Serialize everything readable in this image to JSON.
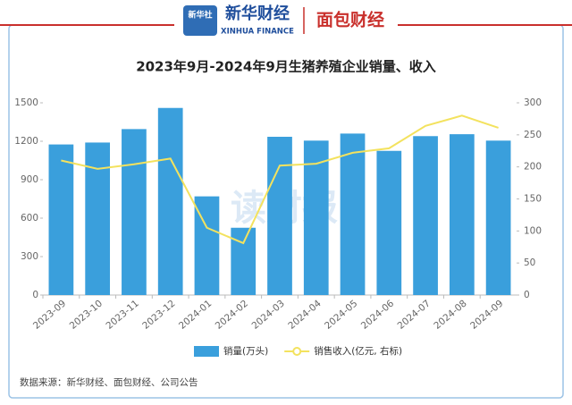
{
  "header": {
    "logo_text": "新华社",
    "brand": "新华财经",
    "brand_en": "XINHUA FINANCE",
    "partner": "面包财经"
  },
  "watermark": "读财报",
  "source": "数据来源：新华财经、面包财经、公司公告",
  "chart_data": {
    "type": "bar-line",
    "title": "2023年9月-2024年9月生猪养殖企业销量、收入",
    "categories": [
      "2023-09",
      "2023-10",
      "2023-11",
      "2023-12",
      "2024-01",
      "2024-02",
      "2024-03",
      "2024-04",
      "2024-05",
      "2024-06",
      "2024-07",
      "2024-08",
      "2024-09"
    ],
    "series": [
      {
        "name": "销量(万头)",
        "type": "bar",
        "color": "#3a9fdc",
        "values": [
          1175,
          1190,
          1295,
          1460,
          770,
          525,
          1235,
          1205,
          1260,
          1125,
          1240,
          1255,
          1205
        ]
      },
      {
        "name": "销售收入(亿元, 右标)",
        "type": "line",
        "axis": "y2",
        "color": "#f3e25e",
        "values": [
          210,
          197,
          204,
          213,
          105,
          81,
          202,
          205,
          222,
          229,
          264,
          280,
          261
        ]
      }
    ],
    "ylim": [
      0,
      1500
    ],
    "yticks": [
      0,
      300,
      600,
      900,
      1200,
      1500
    ],
    "y2lim": [
      0,
      300
    ],
    "y2ticks": [
      0,
      50,
      100,
      150,
      200,
      250,
      300
    ]
  }
}
